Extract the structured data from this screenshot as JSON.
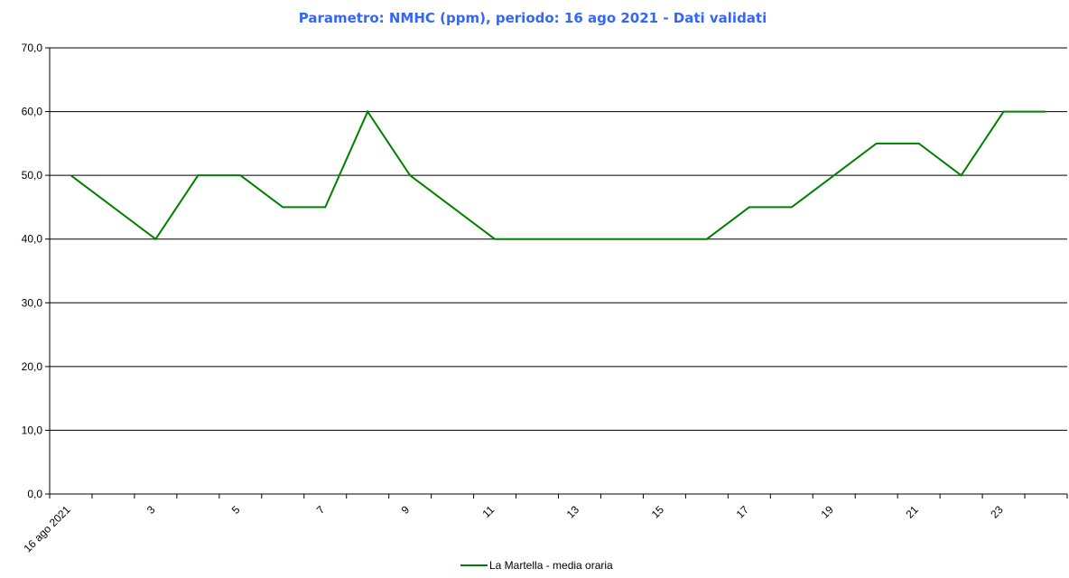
{
  "chart_data": {
    "type": "line",
    "title": "Parametro: NMHC (ppm), periodo: 16 ago 2021 - Dati validati",
    "categories": [
      "16 ago 2021",
      null,
      "3",
      null,
      "5",
      null,
      "7",
      null,
      "9",
      null,
      "11",
      null,
      "13",
      null,
      "15",
      null,
      "17",
      null,
      "19",
      null,
      "21",
      null,
      "23",
      null
    ],
    "series": [
      {
        "name": "La Martella - media oraria",
        "color": "#008000",
        "values": [
          50,
          45,
          40,
          50,
          50,
          45,
          45,
          60,
          50,
          45,
          40,
          40,
          40,
          40,
          40,
          40,
          45,
          45,
          50,
          55,
          55,
          50,
          60,
          60
        ]
      }
    ],
    "ylim": [
      0,
      70
    ],
    "yticks": [
      {
        "value": 0,
        "label": "0,0"
      },
      {
        "value": 10,
        "label": "10,0"
      },
      {
        "value": 20,
        "label": "20,0"
      },
      {
        "value": 30,
        "label": "30,0"
      },
      {
        "value": 40,
        "label": "40,0"
      },
      {
        "value": 50,
        "label": "50,0"
      },
      {
        "value": 60,
        "label": "60,0"
      },
      {
        "value": 70,
        "label": "70,0"
      }
    ],
    "grid": true,
    "legend": "bottom"
  }
}
